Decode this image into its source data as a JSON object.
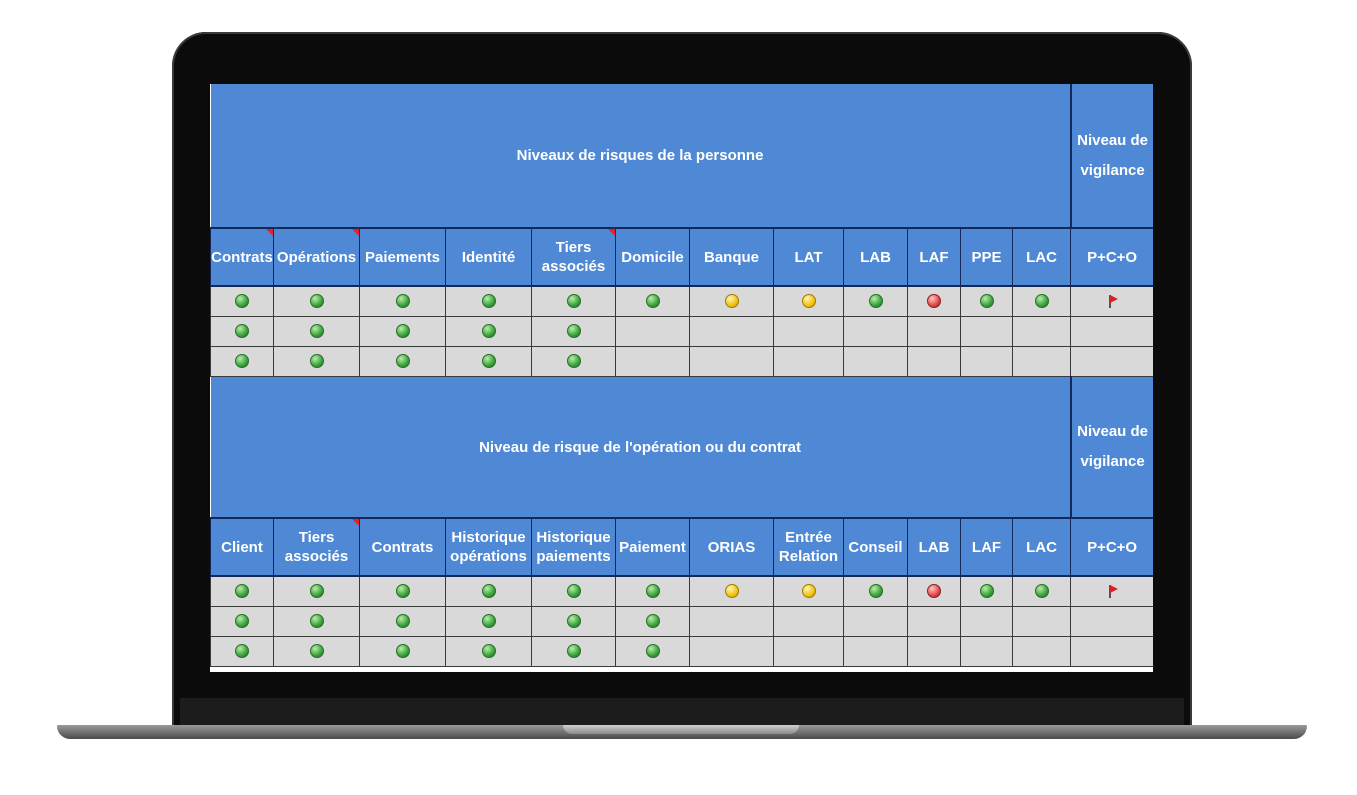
{
  "section1": {
    "title": "Niveaux de risques de la personne",
    "vigilance_title": "Niveau de vigilance",
    "columns": [
      {
        "label": "Contrats",
        "comment": true
      },
      {
        "label": "Opérations",
        "comment": true
      },
      {
        "label": "Paiements",
        "comment": false
      },
      {
        "label": "Identité",
        "comment": false
      },
      {
        "label": "Tiers associés",
        "comment": true
      },
      {
        "label": "Domicile",
        "comment": false
      },
      {
        "label": "Banque",
        "comment": false
      },
      {
        "label": "LAT",
        "comment": false
      },
      {
        "label": "LAB",
        "comment": false
      },
      {
        "label": "LAF",
        "comment": false
      },
      {
        "label": "PPE",
        "comment": false
      },
      {
        "label": "LAC",
        "comment": false
      }
    ],
    "vigilance_column": "P+C+O",
    "rows": [
      {
        "statuses": [
          "green",
          "green",
          "green",
          "green",
          "green",
          "green",
          "yellow",
          "yellow",
          "green",
          "red",
          "green",
          "green"
        ],
        "vigilance": "flag"
      },
      {
        "statuses": [
          "green",
          "green",
          "green",
          "green",
          "green",
          "",
          "",
          "",
          "",
          "",
          "",
          ""
        ],
        "vigilance": ""
      },
      {
        "statuses": [
          "green",
          "green",
          "green",
          "green",
          "green",
          "",
          "",
          "",
          "",
          "",
          "",
          ""
        ],
        "vigilance": ""
      }
    ]
  },
  "section2": {
    "title": "Niveau de risque de l'opération ou du contrat",
    "vigilance_title": "Niveau de vigilance",
    "columns": [
      {
        "label": "Client",
        "comment": false
      },
      {
        "label": "Tiers associés",
        "comment": true
      },
      {
        "label": "Contrats",
        "comment": false
      },
      {
        "label": "Historique opérations",
        "comment": false
      },
      {
        "label": "Historique paiements",
        "comment": false
      },
      {
        "label": "Paiement",
        "comment": false
      },
      {
        "label": "ORIAS",
        "comment": false
      },
      {
        "label": "Entrée Relation",
        "comment": false
      },
      {
        "label": "Conseil",
        "comment": false
      },
      {
        "label": "LAB",
        "comment": false
      },
      {
        "label": "LAF",
        "comment": false
      },
      {
        "label": "LAC",
        "comment": false
      }
    ],
    "vigilance_column": "P+C+O",
    "rows": [
      {
        "statuses": [
          "green",
          "green",
          "green",
          "green",
          "green",
          "green",
          "yellow",
          "yellow",
          "green",
          "red",
          "green",
          "green"
        ],
        "vigilance": "flag"
      },
      {
        "statuses": [
          "green",
          "green",
          "green",
          "green",
          "green",
          "green",
          "",
          "",
          "",
          "",
          "",
          ""
        ],
        "vigilance": ""
      },
      {
        "statuses": [
          "green",
          "green",
          "green",
          "green",
          "green",
          "green",
          "",
          "",
          "",
          "",
          "",
          ""
        ],
        "vigilance": ""
      }
    ]
  },
  "colors": {
    "header_bg": "#4f89d6",
    "cell_bg": "#d9d9d9",
    "border": "#14285a",
    "comment_marker": "#e8202a"
  }
}
